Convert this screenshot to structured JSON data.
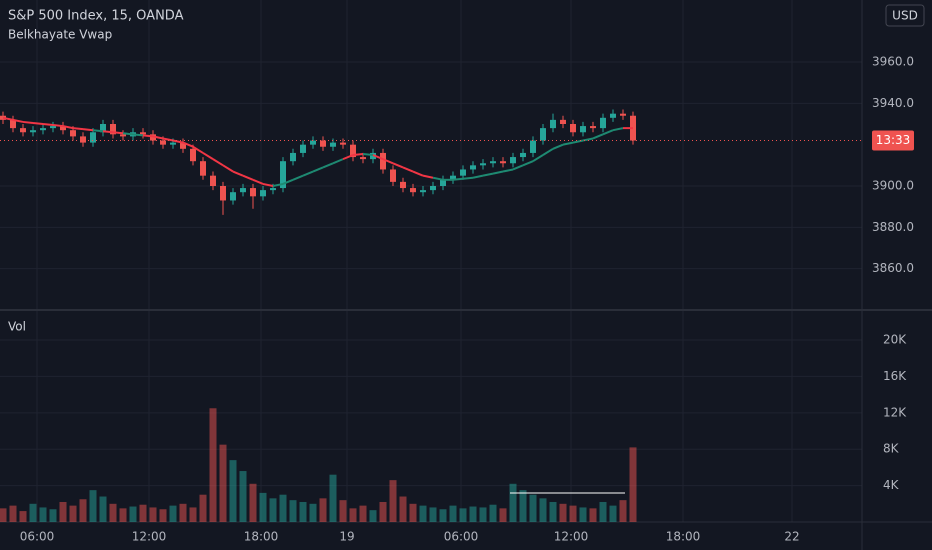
{
  "chart_data": {
    "type": "candlestick",
    "title": "S&P 500 Index, 15, OANDA",
    "indicator": "Belkhayate Vwap",
    "volume_label": "Vol",
    "currency": "USD",
    "countdown": "13:33",
    "up_color": "#26a69a",
    "down_color": "#ef5350",
    "open": [
      3934,
      3932,
      3928,
      3926,
      3927,
      3928,
      3929,
      3927,
      3924,
      3921,
      3926,
      3930,
      3925,
      3924,
      3926,
      3925,
      3922,
      3920,
      3921,
      3918,
      3912,
      3905,
      3900,
      3893,
      3897,
      3899,
      3895,
      3898,
      3899,
      3912,
      3916,
      3920,
      3922,
      3919,
      3921,
      3920,
      3914,
      3913,
      3916,
      3908,
      3902,
      3899,
      3897,
      3898,
      3900,
      3903,
      3905,
      3908,
      3910,
      3911,
      3912,
      3911,
      3914,
      3916,
      3922,
      3928,
      3932,
      3930,
      3926,
      3929,
      3928,
      3933,
      3935,
      3934
    ],
    "high": [
      3936,
      3934,
      3930,
      3929,
      3930,
      3931,
      3931,
      3929,
      3926,
      3928,
      3932,
      3932,
      3927,
      3928,
      3928,
      3927,
      3924,
      3923,
      3923,
      3920,
      3914,
      3907,
      3902,
      3899,
      3901,
      3901,
      3900,
      3901,
      3914,
      3918,
      3922,
      3924,
      3924,
      3923,
      3923,
      3922,
      3916,
      3918,
      3918,
      3910,
      3904,
      3901,
      3900,
      3902,
      3905,
      3907,
      3910,
      3912,
      3913,
      3914,
      3914,
      3916,
      3918,
      3924,
      3930,
      3935,
      3934,
      3932,
      3931,
      3931,
      3935,
      3937,
      3937,
      3936
    ],
    "low": [
      3930,
      3926,
      3924,
      3924,
      3925,
      3926,
      3925,
      3922,
      3919,
      3919,
      3924,
      3923,
      3922,
      3922,
      3923,
      3920,
      3918,
      3918,
      3916,
      3910,
      3903,
      3898,
      3886,
      3891,
      3895,
      3889,
      3893,
      3896,
      3897,
      3910,
      3914,
      3918,
      3917,
      3917,
      3918,
      3912,
      3911,
      3911,
      3906,
      3900,
      3897,
      3895,
      3895,
      3896,
      3898,
      3901,
      3903,
      3906,
      3908,
      3909,
      3909,
      3909,
      3912,
      3914,
      3920,
      3926,
      3928,
      3924,
      3924,
      3926,
      3926,
      3931,
      3932,
      3920
    ],
    "close": [
      3932,
      3928,
      3926,
      3927,
      3928,
      3929,
      3927,
      3924,
      3921,
      3926,
      3930,
      3925,
      3924,
      3926,
      3925,
      3922,
      3920,
      3921,
      3918,
      3912,
      3905,
      3900,
      3893,
      3897,
      3899,
      3895,
      3898,
      3899,
      3912,
      3916,
      3920,
      3922,
      3919,
      3921,
      3920,
      3914,
      3913,
      3916,
      3908,
      3902,
      3899,
      3897,
      3898,
      3900,
      3903,
      3905,
      3908,
      3910,
      3911,
      3912,
      3911,
      3914,
      3916,
      3922,
      3928,
      3932,
      3930,
      3926,
      3929,
      3928,
      3933,
      3935,
      3934,
      3922
    ],
    "volume": [
      1500,
      1800,
      1200,
      2000,
      1600,
      1400,
      2200,
      1800,
      2500,
      3500,
      2800,
      2000,
      1500,
      1700,
      1900,
      1600,
      1400,
      1800,
      2000,
      1600,
      3000,
      12500,
      8500,
      6800,
      5600,
      4200,
      3200,
      2600,
      3000,
      2400,
      2200,
      2000,
      2600,
      5200,
      2400,
      1500,
      1800,
      1300,
      2200,
      4600,
      2800,
      2000,
      1800,
      1600,
      1400,
      1800,
      1500,
      1700,
      1600,
      1900,
      1500,
      4200,
      3500,
      3000,
      2600,
      2200,
      2000,
      1800,
      1600,
      1500,
      2200,
      1800,
      2400,
      8200
    ],
    "vwap": {
      "values": [
        3933,
        3932,
        3931,
        3930.5,
        3930,
        3929.5,
        3929,
        3928,
        3927.5,
        3927,
        3926.5,
        3926,
        3925.5,
        3925,
        3924.5,
        3924,
        3923,
        3922,
        3921,
        3919,
        3916,
        3913,
        3910,
        3907,
        3905,
        3903,
        3901,
        3900,
        3901,
        3903,
        3905,
        3907,
        3909,
        3911,
        3913,
        3915,
        3915.5,
        3915,
        3913,
        3911,
        3909,
        3907,
        3905,
        3904,
        3903,
        3903,
        3903.5,
        3904,
        3905,
        3906,
        3907,
        3908,
        3910,
        3912,
        3915,
        3918,
        3920,
        3921,
        3922,
        3923,
        3925,
        3927,
        3928,
        3928
      ],
      "above_color": "#f23645",
      "below_color": "#1e8a72"
    },
    "xlim": [
      -0.3,
      85.9
    ],
    "xticks": [
      {
        "value": 3.4,
        "label": "06:00"
      },
      {
        "value": 14.6,
        "label": "12:00"
      },
      {
        "value": 25.8,
        "label": "18:00"
      },
      {
        "value": 34.4,
        "label": "19"
      },
      {
        "value": 45.8,
        "label": "06:00"
      },
      {
        "value": 56.8,
        "label": "12:00"
      },
      {
        "value": 68,
        "label": "18:00"
      },
      {
        "value": 78.9,
        "label": "22"
      }
    ],
    "ylim": [
      3840,
      3990
    ],
    "yticks": [
      {
        "value": 3860,
        "label": "3860.0"
      },
      {
        "value": 3880,
        "label": "3880.0"
      },
      {
        "value": 3900,
        "label": "3900.0"
      },
      {
        "value": 3940,
        "label": "3940.0"
      },
      {
        "value": 3960,
        "label": "3960.0"
      }
    ],
    "volume_ylim": [
      0,
      23300
    ],
    "volume_yticks": [
      {
        "value": 4000,
        "label": "4K"
      },
      {
        "value": 8000,
        "label": "8K"
      },
      {
        "value": 12000,
        "label": "12K"
      },
      {
        "value": 16000,
        "label": "16K"
      },
      {
        "value": 20000,
        "label": "20K"
      }
    ],
    "grid": true
  }
}
